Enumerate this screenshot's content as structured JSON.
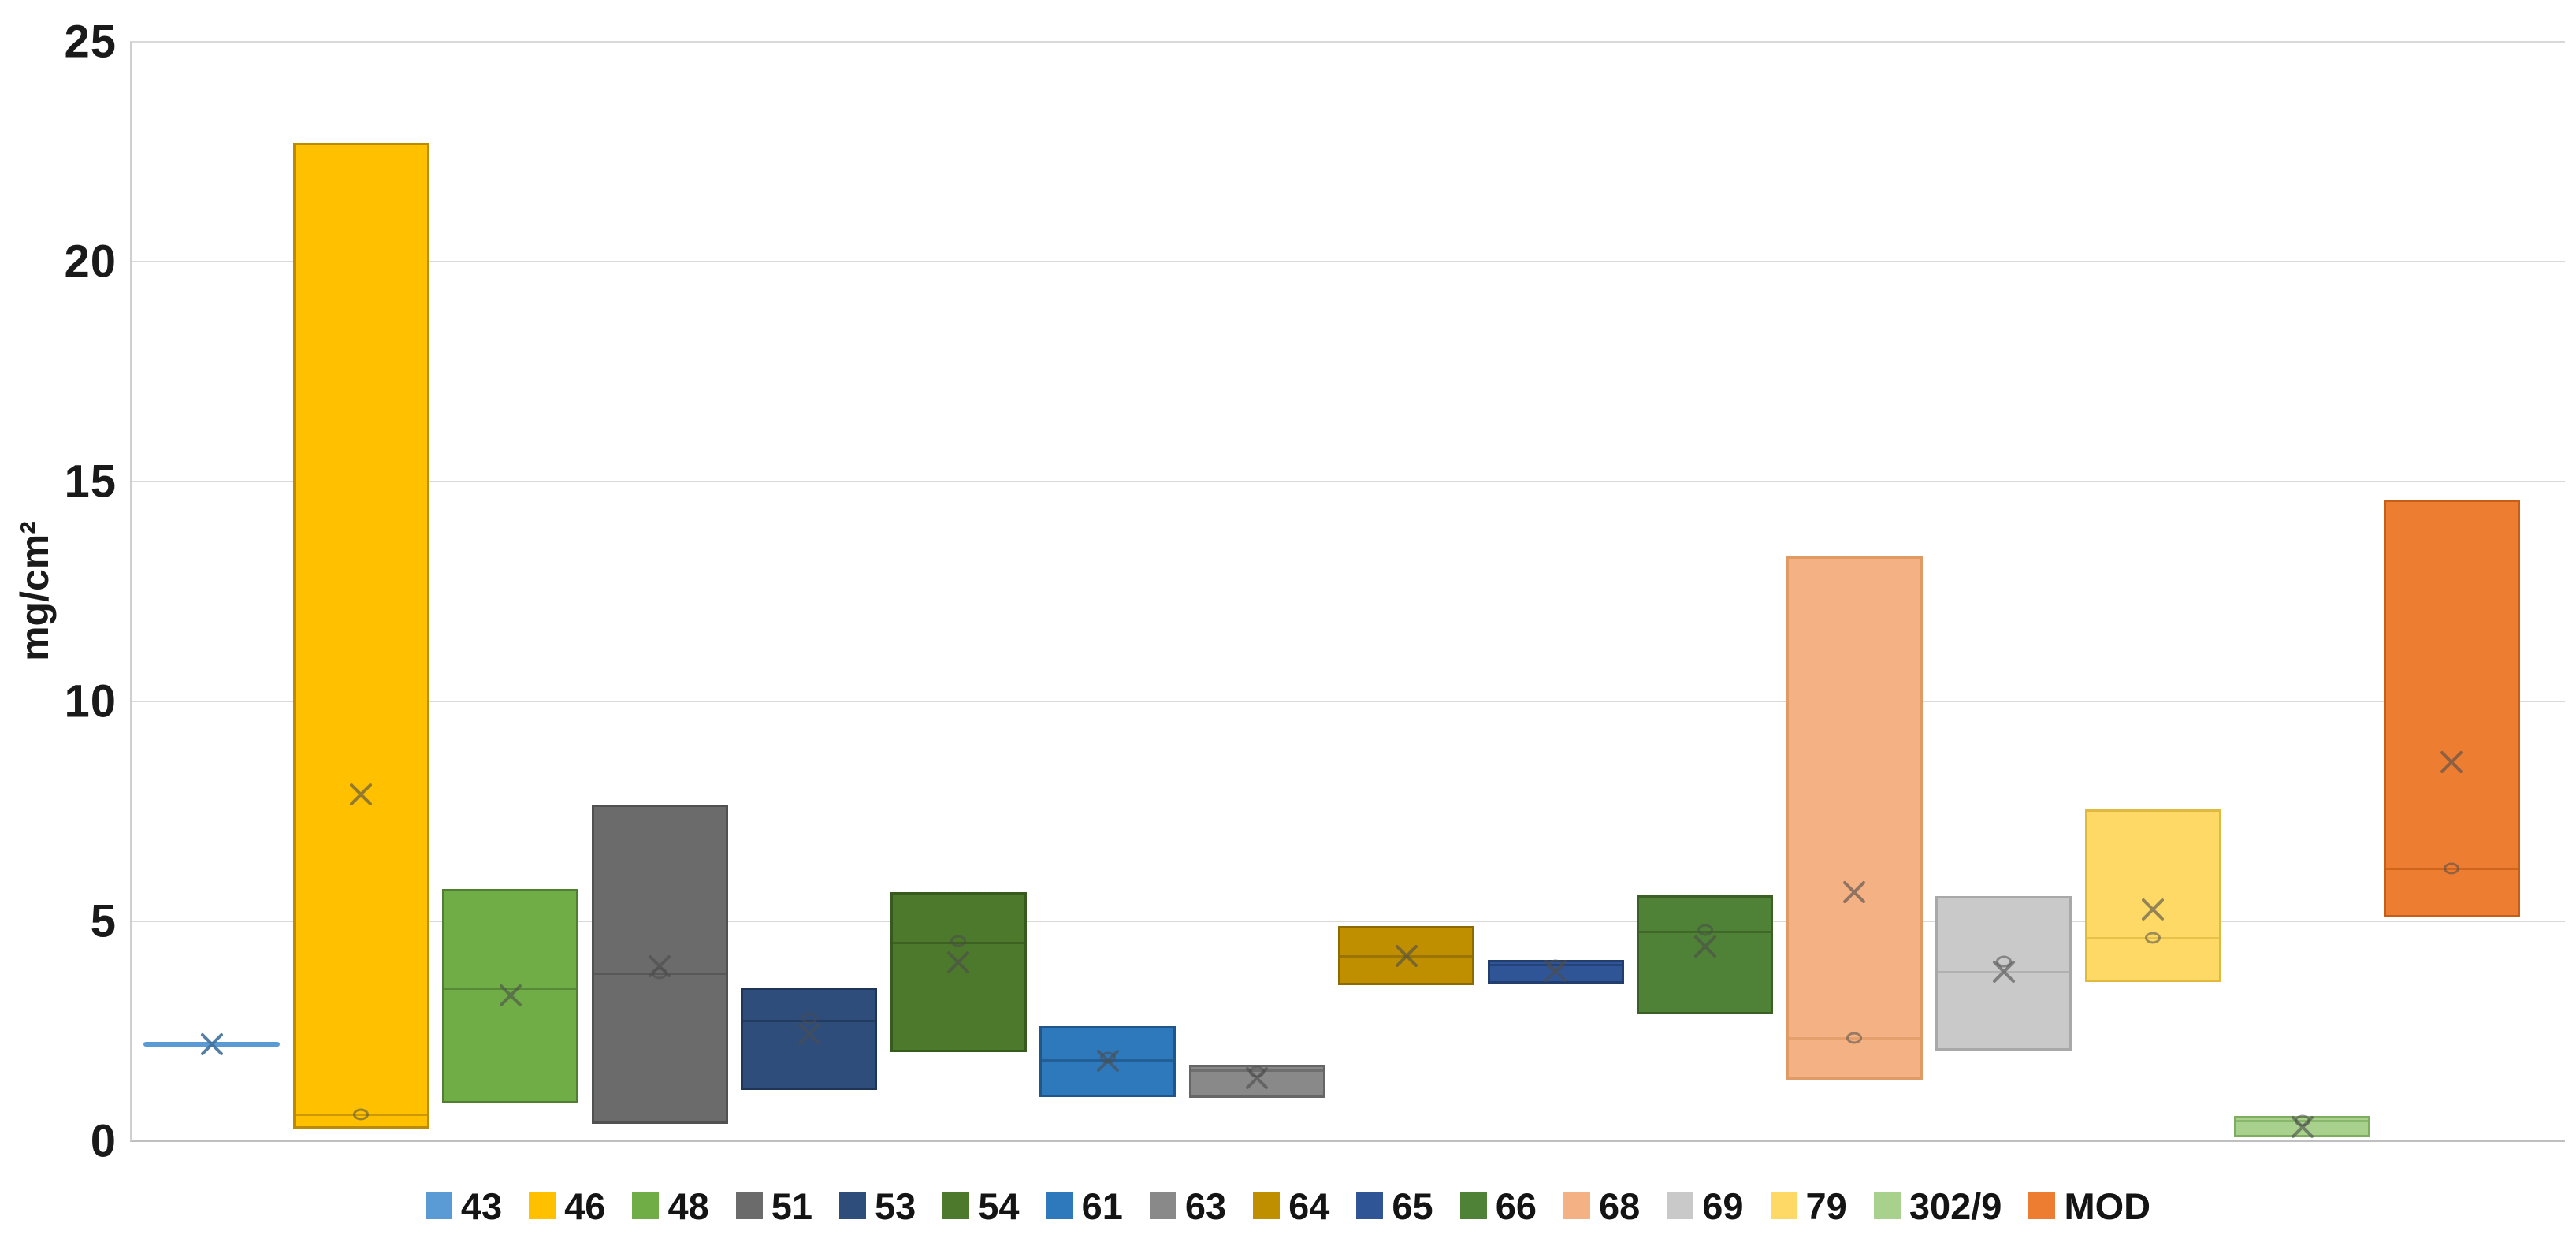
{
  "chart_data": {
    "type": "box",
    "title": "",
    "xlabel": "",
    "ylabel": "mg/cm²",
    "ylim": [
      0,
      25
    ],
    "yticks": [
      0,
      5,
      10,
      15,
      20,
      25
    ],
    "grid": true,
    "legend_position": "bottom",
    "marker_color": "#4d4d4d",
    "series": [
      {
        "name": "43",
        "fill": "#5B9BD5",
        "border": "#41719C",
        "kind": "line",
        "value": 2.2,
        "mean": 2.2,
        "median": 2.2,
        "q1": 2.2,
        "q3": 2.2,
        "point": null
      },
      {
        "name": "46",
        "fill": "#FFC000",
        "border": "#BC8C00",
        "kind": "box",
        "q1": 0.28,
        "median": 0.61,
        "q3": 22.7,
        "mean": 7.88,
        "point": 0.61
      },
      {
        "name": "48",
        "fill": "#70AD47",
        "border": "#507E32",
        "kind": "box",
        "q1": 0.86,
        "median": 3.47,
        "q3": 5.74,
        "mean": 3.31,
        "point": null
      },
      {
        "name": "51",
        "fill": "#6B6B6B",
        "border": "#515151",
        "kind": "box",
        "q1": 0.4,
        "median": 3.82,
        "q3": 7.66,
        "mean": 3.97,
        "point": 3.82
      },
      {
        "name": "53",
        "fill": "#2E4D7B",
        "border": "#1F3557",
        "kind": "box",
        "q1": 1.16,
        "median": 2.74,
        "q3": 3.49,
        "mean": 2.44,
        "point": 2.8
      },
      {
        "name": "54",
        "fill": "#4C792C",
        "border": "#375A1E",
        "kind": "box",
        "q1": 2.03,
        "median": 4.52,
        "q3": 5.67,
        "mean": 4.06,
        "point": 4.56
      },
      {
        "name": "61",
        "fill": "#2E79BC",
        "border": "#1F578A",
        "kind": "box",
        "q1": 1.0,
        "median": 1.85,
        "q3": 2.62,
        "mean": 1.82,
        "point": 1.9
      },
      {
        "name": "63",
        "fill": "#898989",
        "border": "#666666",
        "kind": "box",
        "q1": 0.99,
        "median": 1.61,
        "q3": 1.74,
        "mean": 1.43,
        "point": 1.58
      },
      {
        "name": "64",
        "fill": "#BF8F00",
        "border": "#8D6A00",
        "kind": "box",
        "q1": 3.54,
        "median": 4.21,
        "q3": 4.9,
        "mean": 4.21,
        "point": null
      },
      {
        "name": "65",
        "fill": "#2F5597",
        "border": "#223E6F",
        "kind": "box",
        "q1": 3.58,
        "median": 4.01,
        "q3": 4.12,
        "mean": 3.87,
        "point": 4.0
      },
      {
        "name": "66",
        "fill": "#4F8136",
        "border": "#3A6026",
        "kind": "box",
        "q1": 2.88,
        "median": 4.77,
        "q3": 5.59,
        "mean": 4.42,
        "point": 4.8
      },
      {
        "name": "68",
        "fill": "#F4B183",
        "border": "#E09A64",
        "kind": "box",
        "q1": 1.4,
        "median": 2.35,
        "q3": 13.3,
        "mean": 5.66,
        "point": 2.35
      },
      {
        "name": "69",
        "fill": "#C9C9C9",
        "border": "#A8A8A8",
        "kind": "box",
        "q1": 2.06,
        "median": 3.85,
        "q3": 5.57,
        "mean": 3.85,
        "point": 4.09
      },
      {
        "name": "79",
        "fill": "#FFD966",
        "border": "#E0B93F",
        "kind": "box",
        "q1": 3.62,
        "median": 4.62,
        "q3": 7.55,
        "mean": 5.27,
        "point": 4.62
      },
      {
        "name": "302/9",
        "fill": "#A9D18E",
        "border": "#7FAD60",
        "kind": "box",
        "q1": 0.09,
        "median": 0.47,
        "q3": 0.57,
        "mean": 0.32,
        "point": 0.47
      },
      {
        "name": "MOD",
        "fill": "#ED7D31",
        "border": "#C55E16",
        "kind": "box",
        "q1": 5.09,
        "median": 6.2,
        "q3": 14.59,
        "mean": 8.62,
        "point": 6.2
      }
    ]
  }
}
